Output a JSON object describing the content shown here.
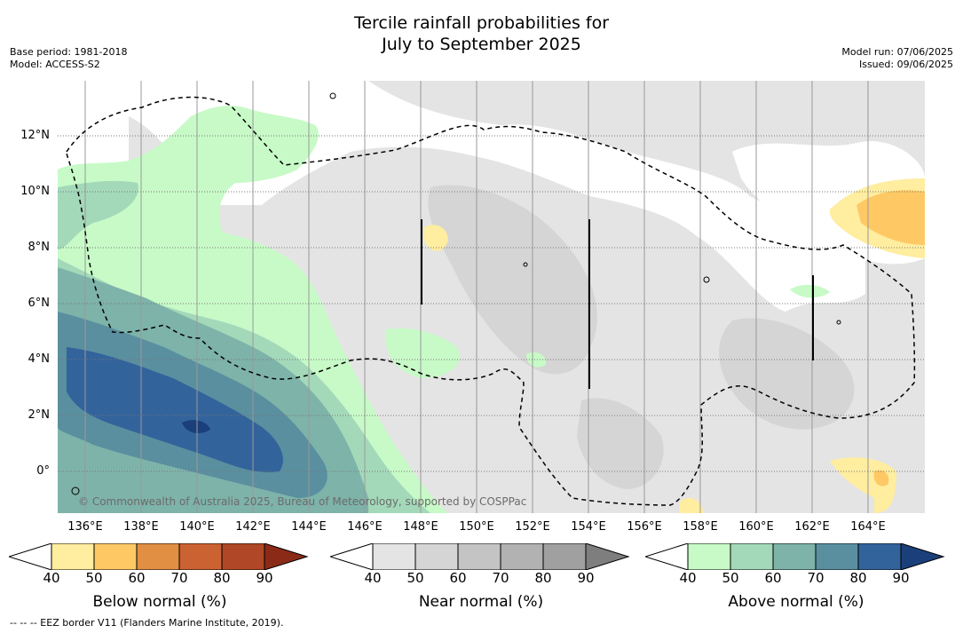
{
  "header": {
    "title_line1": "Tercile rainfall probabilities for",
    "title_line2": "July to September 2025",
    "base_period": "Base period: 1981-2018",
    "model": "Model: ACCESS-S2",
    "model_run": "Model run: 07/06/2025",
    "issued": "Issued: 09/06/2025"
  },
  "map": {
    "lat_labels": [
      "12°N",
      "10°N",
      "8°N",
      "6°N",
      "4°N",
      "2°N",
      "0°"
    ],
    "lon_labels": [
      "136°E",
      "138°E",
      "140°E",
      "142°E",
      "144°E",
      "146°E",
      "148°E",
      "150°E",
      "152°E",
      "154°E",
      "156°E",
      "158°E",
      "160°E",
      "162°E",
      "164°E"
    ],
    "copyright": "© Commonwealth of Australia 2025, Bureau of Meteorology, supported by COSPPac",
    "colors": {
      "below": [
        "#ffffff",
        "#ffeda0",
        "#fec965",
        "#e08f43",
        "#cb6232",
        "#b04726",
        "#8b2b17"
      ],
      "near": [
        "#ffffff",
        "#e4e4e4",
        "#d5d5d5",
        "#c4c4c4",
        "#b2b2b2",
        "#a0a0a0",
        "#7e7e7e"
      ],
      "above": [
        "#ffffff",
        "#c7fac7",
        "#a3d9b9",
        "#7eb3a9",
        "#5a8fa0",
        "#33639b",
        "#1b3f7a"
      ]
    }
  },
  "colorbars": [
    {
      "id": "below",
      "title": "Below normal (%)",
      "ticks": [
        "40",
        "50",
        "60",
        "70",
        "80",
        "90"
      ]
    },
    {
      "id": "near",
      "title": "Near normal (%)",
      "ticks": [
        "40",
        "50",
        "60",
        "70",
        "80",
        "90"
      ]
    },
    {
      "id": "above",
      "title": "Above normal (%)",
      "ticks": [
        "40",
        "50",
        "60",
        "70",
        "80",
        "90"
      ]
    }
  ],
  "footnote": "--  --  -- EEZ border V11 (Flanders Marine Institute, 2019)."
}
